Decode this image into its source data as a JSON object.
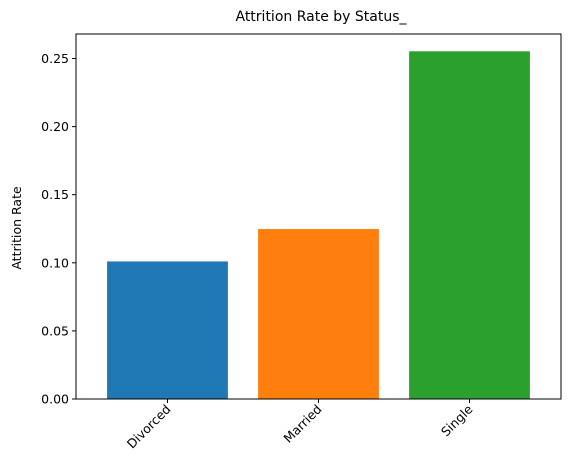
{
  "chart_data": {
    "type": "bar",
    "title": "Attrition Rate by Status_",
    "xlabel": "",
    "ylabel": "Attrition Rate",
    "categories": [
      "Divorced",
      "Married",
      "Single"
    ],
    "values": [
      0.101,
      0.1248,
      0.2553
    ],
    "colors": [
      "#1f77b4",
      "#ff7f0e",
      "#2ca02c"
    ],
    "ylim": [
      0,
      0.268
    ],
    "yticks": [
      0.0,
      0.05,
      0.1,
      0.15,
      0.2,
      0.25
    ],
    "ytick_labels": [
      "0.00",
      "0.05",
      "0.10",
      "0.15",
      "0.20",
      "0.25"
    ],
    "grid": false,
    "xtick_rotation": 45
  }
}
